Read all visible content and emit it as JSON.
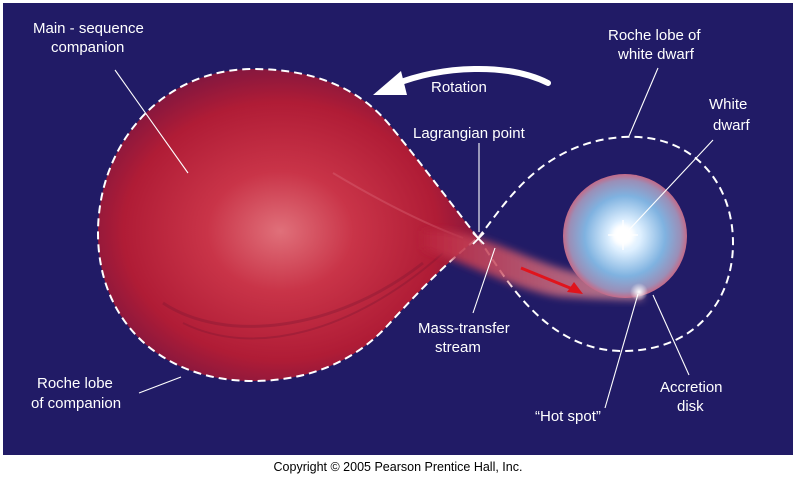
{
  "labels": {
    "main_sequence_line1": "Main - sequence",
    "main_sequence_line2": "companion",
    "rotation": "Rotation",
    "roche_wd_line1": "Roche lobe of",
    "roche_wd_line2": "white dwarf",
    "white_dwarf_line1": "White",
    "white_dwarf_line2": "dwarf",
    "lagrangian_point": "Lagrangian point",
    "mass_transfer_line1": "Mass-transfer",
    "mass_transfer_line2": "stream",
    "roche_companion_line1": "Roche lobe",
    "roche_companion_line2": "of companion",
    "hot_spot": "“Hot spot”",
    "accretion_line1": "Accretion",
    "accretion_line2": "disk"
  },
  "copyright": "Copyright © 2005 Pearson Prentice Hall, Inc.",
  "colors": {
    "background": "#211b66",
    "companion": "#b0203a",
    "white_dwarf": "#cfe4f7",
    "stream_arrow": "#e0141c"
  }
}
